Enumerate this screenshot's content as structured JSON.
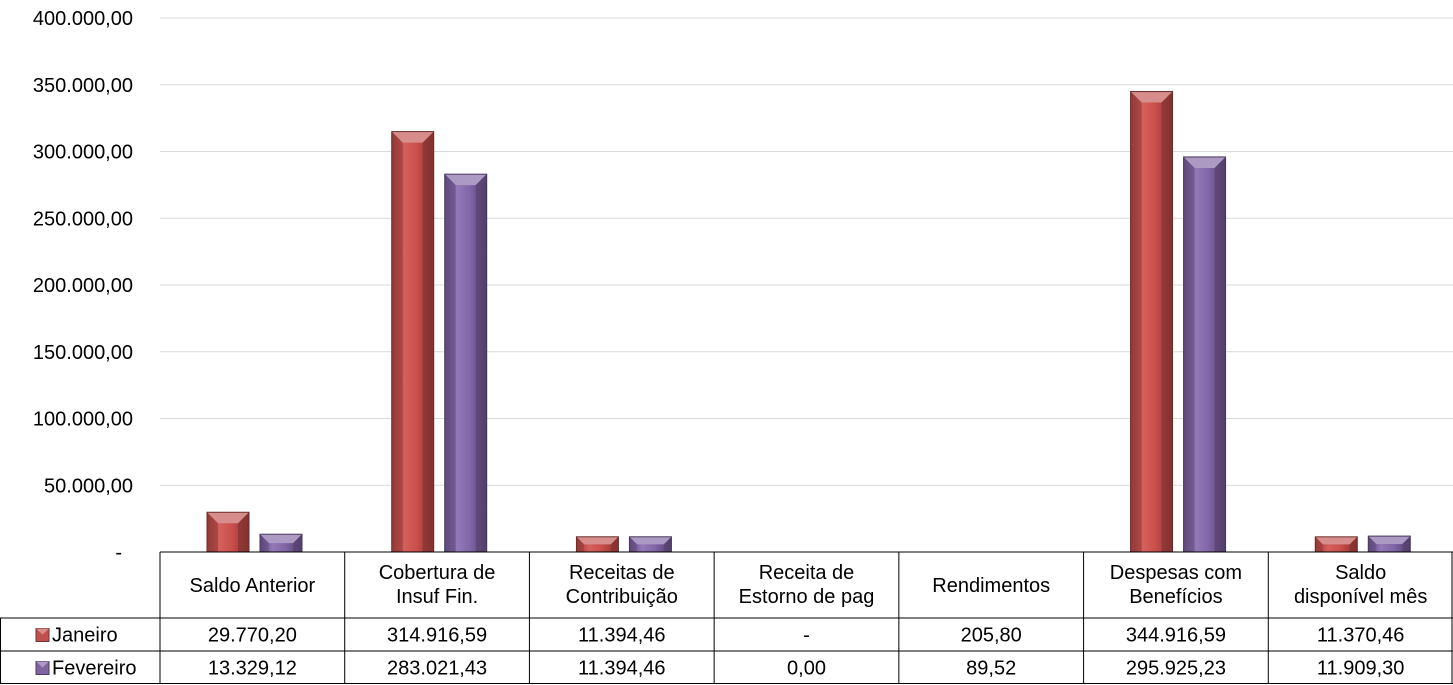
{
  "chart_data": {
    "type": "bar",
    "title": "",
    "xlabel": "",
    "ylabel": "",
    "ylim": [
      0,
      400000
    ],
    "yticks": [
      {
        "value": 0,
        "label": "-"
      },
      {
        "value": 50000,
        "label": "50.000,00"
      },
      {
        "value": 100000,
        "label": "100.000,00"
      },
      {
        "value": 150000,
        "label": "150.000,00"
      },
      {
        "value": 200000,
        "label": "200.000,00"
      },
      {
        "value": 250000,
        "label": "250.000,00"
      },
      {
        "value": 300000,
        "label": "300.000,00"
      },
      {
        "value": 350000,
        "label": "350.000,00"
      },
      {
        "value": 400000,
        "label": "400.000,00"
      }
    ],
    "grid": true,
    "legend": "data-table",
    "categories": [
      [
        "Saldo Anterior"
      ],
      [
        "Cobertura de",
        "Insuf Fin."
      ],
      [
        "Receitas de",
        "Contribuição"
      ],
      [
        "Receita de",
        "Estorno de pag"
      ],
      [
        "Rendimentos"
      ],
      [
        "Despesas com",
        "Benefícios"
      ],
      [
        "Saldo",
        "disponível mês"
      ]
    ],
    "series": [
      {
        "name": "Janeiro",
        "color": "#c0504d",
        "values": [
          29770.2,
          314916.59,
          11394.46,
          0,
          205.8,
          344916.59,
          11370.46
        ],
        "labels": [
          "29.770,20",
          "314.916,59",
          "11.394,46",
          "-",
          "205,80",
          "344.916,59",
          "11.370,46"
        ]
      },
      {
        "name": "Fevereiro",
        "color": "#8064a2",
        "values": [
          13329.12,
          283021.43,
          11394.46,
          0.0,
          89.52,
          295925.23,
          11909.3
        ],
        "labels": [
          "13.329,12",
          "283.021,43",
          "11.394,46",
          "0,00",
          "89,52",
          "295.925,23",
          "11.909,30"
        ]
      }
    ]
  }
}
